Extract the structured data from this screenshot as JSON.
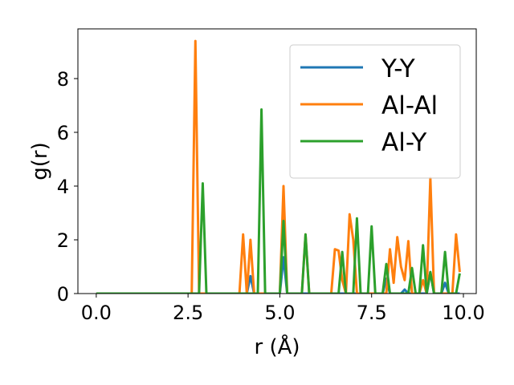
{
  "chart_data": {
    "type": "line",
    "title": "",
    "xlabel": "r (Å)",
    "ylabel": "g(r)",
    "xlim": [
      -0.5,
      10.35
    ],
    "ylim": [
      0,
      9.85
    ],
    "xticks": [
      0,
      2.5,
      5,
      7.5,
      10
    ],
    "xtick_labels": [
      "0.0",
      "2.5",
      "5.0",
      "7.5",
      "10.0"
    ],
    "yticks": [
      0,
      2,
      4,
      6,
      8
    ],
    "ytick_labels": [
      "0",
      "2",
      "4",
      "6",
      "8"
    ],
    "grid": false,
    "legend_position": "top-right",
    "series": [
      {
        "name": "Y-Y",
        "color": "#1f77b4",
        "points": [
          [
            0.0,
            0
          ],
          [
            4.1,
            0
          ],
          [
            4.2,
            0.65
          ],
          [
            4.3,
            0
          ],
          [
            5.0,
            0
          ],
          [
            5.1,
            1.35
          ],
          [
            5.2,
            0
          ],
          [
            7.8,
            0
          ],
          [
            7.9,
            0.55
          ],
          [
            8.0,
            0
          ],
          [
            8.3,
            0
          ],
          [
            8.4,
            0.15
          ],
          [
            8.5,
            0
          ],
          [
            9.0,
            0
          ],
          [
            9.1,
            0.8
          ],
          [
            9.2,
            0
          ],
          [
            9.4,
            0
          ],
          [
            9.5,
            0.4
          ],
          [
            9.6,
            0
          ],
          [
            9.9,
            0
          ]
        ]
      },
      {
        "name": "Al-Al",
        "color": "#ff7f0e",
        "points": [
          [
            0.0,
            0
          ],
          [
            2.6,
            0
          ],
          [
            2.7,
            9.4
          ],
          [
            2.8,
            0
          ],
          [
            3.9,
            0
          ],
          [
            4.0,
            2.2
          ],
          [
            4.1,
            0
          ],
          [
            4.2,
            2.0
          ],
          [
            4.3,
            0
          ],
          [
            5.0,
            0
          ],
          [
            5.1,
            4.0
          ],
          [
            5.2,
            0
          ],
          [
            5.6,
            0
          ],
          [
            5.7,
            2.2
          ],
          [
            5.8,
            0
          ],
          [
            6.4,
            0
          ],
          [
            6.5,
            1.65
          ],
          [
            6.6,
            1.6
          ],
          [
            6.7,
            0.5
          ],
          [
            6.8,
            0
          ],
          [
            6.9,
            2.95
          ],
          [
            7.0,
            2.0
          ],
          [
            7.1,
            0
          ],
          [
            7.9,
            0
          ],
          [
            8.0,
            1.65
          ],
          [
            8.1,
            0.4
          ],
          [
            8.2,
            2.1
          ],
          [
            8.3,
            1.0
          ],
          [
            8.4,
            0.5
          ],
          [
            8.5,
            1.95
          ],
          [
            8.6,
            0
          ],
          [
            8.8,
            0
          ],
          [
            8.9,
            0.5
          ],
          [
            9.0,
            0
          ],
          [
            9.1,
            4.3
          ],
          [
            9.2,
            0
          ],
          [
            9.7,
            0
          ],
          [
            9.8,
            2.2
          ],
          [
            9.9,
            0.8
          ]
        ]
      },
      {
        "name": "Al-Y",
        "color": "#2ca02c",
        "points": [
          [
            0.0,
            0
          ],
          [
            2.8,
            0
          ],
          [
            2.9,
            4.1
          ],
          [
            3.0,
            0
          ],
          [
            4.4,
            0
          ],
          [
            4.5,
            6.85
          ],
          [
            4.6,
            0
          ],
          [
            5.0,
            0
          ],
          [
            5.1,
            2.7
          ],
          [
            5.2,
            0
          ],
          [
            5.6,
            0
          ],
          [
            5.7,
            2.2
          ],
          [
            5.8,
            0
          ],
          [
            6.6,
            0
          ],
          [
            6.7,
            1.55
          ],
          [
            6.8,
            0
          ],
          [
            7.0,
            0
          ],
          [
            7.1,
            2.8
          ],
          [
            7.2,
            0
          ],
          [
            7.4,
            0
          ],
          [
            7.5,
            2.5
          ],
          [
            7.6,
            0
          ],
          [
            7.8,
            0
          ],
          [
            7.9,
            1.1
          ],
          [
            8.0,
            0
          ],
          [
            8.5,
            0
          ],
          [
            8.6,
            0.95
          ],
          [
            8.7,
            0
          ],
          [
            8.8,
            0
          ],
          [
            8.9,
            1.8
          ],
          [
            9.0,
            0
          ],
          [
            9.1,
            0.8
          ],
          [
            9.2,
            0
          ],
          [
            9.4,
            0
          ],
          [
            9.5,
            1.55
          ],
          [
            9.6,
            0
          ],
          [
            9.8,
            0
          ],
          [
            9.9,
            0.75
          ]
        ]
      }
    ]
  }
}
